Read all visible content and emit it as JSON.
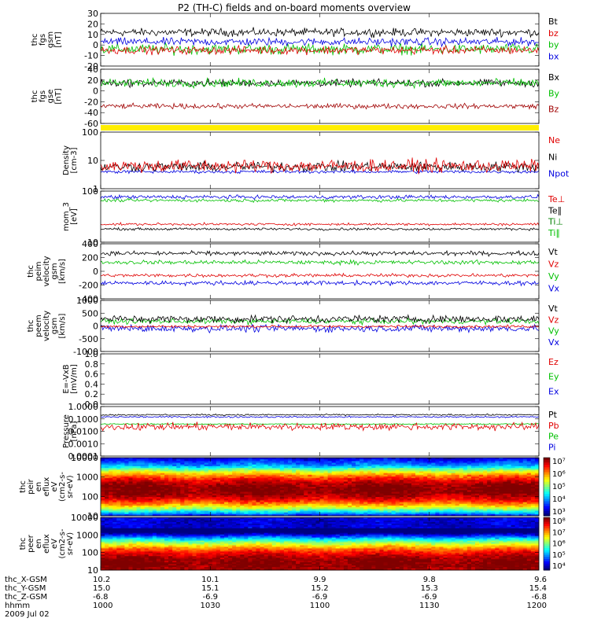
{
  "title": "P2 (TH-C) fields and on-board moments overview",
  "chart_data": [
    {
      "type": "line",
      "panel": "fgs_gsm",
      "ylabel": [
        "thc",
        "fgs",
        "gsm",
        "[nT]"
      ],
      "yticks": [
        "30",
        "20",
        "10",
        "0",
        "-10",
        "-20"
      ],
      "ylim": [
        -20,
        30
      ],
      "legend": [
        {
          "name": "Bt",
          "color": "#000000"
        },
        {
          "name": "bz",
          "color": "#e00000"
        },
        {
          "name": "by",
          "color": "#00c000"
        },
        {
          "name": "bx",
          "color": "#0000e0"
        }
      ],
      "series": [
        {
          "name": "Bt",
          "color": "#000000",
          "baseline": 12,
          "noise": 3
        },
        {
          "name": "by",
          "color": "#00c000",
          "baseline": -4,
          "noise": 4
        },
        {
          "name": "bx",
          "color": "#0000e0",
          "baseline": 3,
          "noise": 3
        },
        {
          "name": "bz",
          "color": "#e00000",
          "baseline": -5,
          "noise": 3
        }
      ]
    },
    {
      "type": "line",
      "panel": "fgs_gse",
      "ylabel": [
        "thc",
        "fgs",
        "gse",
        "[nT]"
      ],
      "yticks": [
        "40",
        "20",
        "0",
        "-20",
        "-40",
        "-60"
      ],
      "ylim": [
        -70,
        40
      ],
      "legend": [
        {
          "name": "Bx",
          "color": "#000000"
        },
        {
          "name": "By",
          "color": "#00c000"
        },
        {
          "name": "Bz",
          "color": "#a00000"
        }
      ],
      "series": [
        {
          "name": "Bx",
          "color": "#000000",
          "baseline": 12,
          "noise": 6
        },
        {
          "name": "By",
          "color": "#00c000",
          "baseline": 12,
          "noise": 7
        },
        {
          "name": "Bz",
          "color": "#a00000",
          "baseline": -35,
          "noise": 4
        }
      ]
    },
    {
      "type": "line",
      "panel": "density",
      "ylabel": [
        "Density",
        "[cm-3]"
      ],
      "yticks": [
        "100",
        "10",
        "1"
      ],
      "ylim": [
        1,
        150
      ],
      "log": true,
      "legend": [
        {
          "name": "Ne",
          "color": "#e00000"
        },
        {
          "name": "Ni",
          "color": "#000000"
        },
        {
          "name": "Npot",
          "color": "#0000e0"
        }
      ],
      "series": [
        {
          "name": "Npot",
          "color": "#0000e0",
          "baseline": 4.5,
          "noise": 0.05
        },
        {
          "name": "Ni",
          "color": "#000000",
          "baseline": 7,
          "noise": 0.15
        },
        {
          "name": "Ne",
          "color": "#e00000",
          "baseline": 7.5,
          "noise": 0.2
        }
      ]
    },
    {
      "type": "line",
      "panel": "temperature",
      "ylabel": [
        "mom_3",
        "[eV]"
      ],
      "yticks": [
        "100",
        "10"
      ],
      "ylim": [
        8,
        900
      ],
      "log": true,
      "legend": [
        {
          "name": "Te⊥",
          "color": "#e00000"
        },
        {
          "name": "Te∥",
          "color": "#000000"
        },
        {
          "name": "Ti⊥",
          "color": "#008000"
        },
        {
          "name": "Ti∥",
          "color": "#00c000"
        }
      ],
      "series": [
        {
          "name": "Ti∥",
          "color": "#0000e0",
          "baseline": 520,
          "noise": 0.06
        },
        {
          "name": "Ti⊥",
          "color": "#00c000",
          "baseline": 380,
          "noise": 0.05
        },
        {
          "name": "Te⊥",
          "color": "#e00000",
          "baseline": 42,
          "noise": 0.04
        },
        {
          "name": "Te∥",
          "color": "#000000",
          "baseline": 27,
          "noise": 0.04
        }
      ]
    },
    {
      "type": "line",
      "panel": "peim_velocity",
      "ylabel": [
        "thc",
        "peim",
        "velocity",
        "gsm",
        "[km/s]"
      ],
      "yticks": [
        "400",
        "200",
        "0",
        "-200",
        "-400"
      ],
      "ylim": [
        -400,
        400
      ],
      "legend": [
        {
          "name": "Vt",
          "color": "#000000"
        },
        {
          "name": "Vz",
          "color": "#e00000"
        },
        {
          "name": "Vy",
          "color": "#00c000"
        },
        {
          "name": "Vx",
          "color": "#0000e0"
        }
      ],
      "series": [
        {
          "name": "Vt",
          "color": "#000000",
          "baseline": 260,
          "noise": 25
        },
        {
          "name": "Vy",
          "color": "#00c000",
          "baseline": 130,
          "noise": 25
        },
        {
          "name": "Vz",
          "color": "#e00000",
          "baseline": -60,
          "noise": 20
        },
        {
          "name": "Vx",
          "color": "#0000e0",
          "baseline": -170,
          "noise": 25
        }
      ]
    },
    {
      "type": "line",
      "panel": "peem_velocity",
      "ylabel": [
        "thc",
        "peem",
        "velocity",
        "gsm",
        "[km/s]"
      ],
      "yticks": [
        "1000",
        "500",
        "0",
        "-500",
        "-1000"
      ],
      "ylim": [
        -1000,
        1000
      ],
      "legend": [
        {
          "name": "Vt",
          "color": "#000000"
        },
        {
          "name": "Vz",
          "color": "#e00000"
        },
        {
          "name": "Vy",
          "color": "#00c000"
        },
        {
          "name": "Vx",
          "color": "#0000e0"
        }
      ],
      "series": [
        {
          "name": "Vy",
          "color": "#00c000",
          "baseline": 180,
          "noise": 80
        },
        {
          "name": "Vx",
          "color": "#0000e0",
          "baseline": -100,
          "noise": 110
        },
        {
          "name": "Vt",
          "color": "#000000",
          "baseline": 270,
          "noise": 120
        },
        {
          "name": "Vz",
          "color": "#e00000",
          "baseline": -20,
          "noise": 40
        }
      ]
    },
    {
      "type": "line",
      "panel": "efield",
      "ylabel": [
        "E=-VxB",
        "[mV/m]"
      ],
      "yticks": [
        "1.0",
        "0.8",
        "0.6",
        "0.4",
        "0.2",
        "0.0"
      ],
      "ylim": [
        0,
        1
      ],
      "legend": [
        {
          "name": "Ez",
          "color": "#e00000"
        },
        {
          "name": "Ey",
          "color": "#00c000"
        },
        {
          "name": "Ex",
          "color": "#0000e0"
        }
      ],
      "series": []
    },
    {
      "type": "line",
      "panel": "pressure",
      "ylabel": [
        "Pressure",
        "[nPa]"
      ],
      "yticks": [
        "1.0000",
        "0.1000",
        "0.0100",
        "0.0010",
        "0.0001"
      ],
      "ylim": [
        0.0001,
        1.5
      ],
      "log": true,
      "legend": [
        {
          "name": "Pt",
          "color": "#000000"
        },
        {
          "name": "Pb",
          "color": "#e00000"
        },
        {
          "name": "Pe",
          "color": "#00c000"
        },
        {
          "name": "Pi",
          "color": "#0000e0"
        }
      ],
      "series": [
        {
          "name": "Pt",
          "color": "#000000",
          "baseline": 0.3,
          "noise": 0.05
        },
        {
          "name": "Pi",
          "color": "#0000e0",
          "baseline": 0.2,
          "noise": 0.05
        },
        {
          "name": "Pe",
          "color": "#00c000",
          "baseline": 0.05,
          "noise": 0.04
        },
        {
          "name": "Pb",
          "color": "#e00000",
          "baseline": 0.03,
          "noise": 0.25
        }
      ]
    },
    {
      "type": "heatmap",
      "panel": "peir_spectrogram",
      "ylabel": [
        "thc",
        "peir",
        "en",
        "eflux",
        "eV",
        "(cm2-s-",
        "sr-eV)"
      ],
      "yticks": [
        "10000",
        "1000",
        "100",
        "10"
      ],
      "ylim": [
        5,
        25000
      ],
      "colorbar_labels": [
        "10⁷",
        "10⁶",
        "10⁵",
        "10⁴",
        "10³"
      ],
      "colorbar_range": [
        3,
        7.5
      ]
    },
    {
      "type": "heatmap",
      "panel": "peer_spectrogram",
      "ylabel": [
        "thc",
        "peer",
        "en",
        "eflux",
        "eV",
        "(cm2-s-",
        "sr-eV)"
      ],
      "yticks": [
        "10000",
        "1000",
        "100",
        "10"
      ],
      "ylim": [
        7,
        25000
      ],
      "colorbar_labels": [
        "10⁸",
        "10⁷",
        "10⁶",
        "10⁵",
        "10⁴"
      ],
      "colorbar_range": [
        3.5,
        8.5
      ]
    }
  ],
  "xaxis": {
    "row_labels": [
      "thc_X-GSM",
      "thc_Y-GSM",
      "thc_Z-GSM",
      "hhmm"
    ],
    "date": "2009 Jul 02",
    "ticks": [
      {
        "X": "10.2",
        "Y": "15.0",
        "Z": "-6.8",
        "hhmm": "1000",
        "frac": 0.0
      },
      {
        "X": "10.1",
        "Y": "15.1",
        "Z": "-6.9",
        "hhmm": "1030",
        "frac": 0.25
      },
      {
        "X": "9.9",
        "Y": "15.2",
        "Z": "-6.9",
        "hhmm": "1100",
        "frac": 0.5
      },
      {
        "X": "9.8",
        "Y": "15.3",
        "Z": "-6.9",
        "hhmm": "1130",
        "frac": 0.75
      },
      {
        "X": "9.6",
        "Y": "15.4",
        "Z": "-6.8",
        "hhmm": "1200",
        "frac": 1.0
      }
    ],
    "time_range": [
      "1000",
      "1200"
    ]
  },
  "colors": {
    "flag_bar": "#ffee00"
  }
}
